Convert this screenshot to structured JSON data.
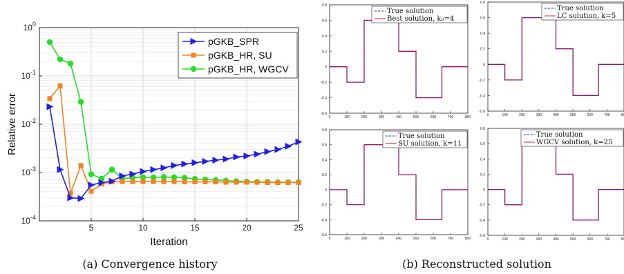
{
  "figure": {
    "caption_a": "(a)  Convergence history",
    "caption_b": "(b)  Reconstructed solution"
  },
  "chart_data": [
    {
      "type": "line",
      "title": "",
      "xlabel": "Iteration",
      "ylabel": "Relative error",
      "yscale": "log",
      "xlim": [
        0,
        25
      ],
      "ylim": [
        0.0001,
        1
      ],
      "xticks": [
        "5",
        "10",
        "15",
        "20",
        "25"
      ],
      "yticks": [
        "10^-4",
        "10^-3",
        "10^-2",
        "10^-1",
        "10^0"
      ],
      "grid": true,
      "legend_position": "top-right",
      "x": [
        1,
        2,
        3,
        4,
        5,
        6,
        7,
        8,
        9,
        10,
        11,
        12,
        13,
        14,
        15,
        16,
        17,
        18,
        19,
        20,
        21,
        22,
        23,
        24,
        25
      ],
      "series": [
        {
          "name": "pGKB_SPR",
          "color": "#1f1fe8",
          "marker": "triangle-right",
          "values": [
            0.023,
            0.00115,
            0.0003,
            0.00029,
            0.00055,
            0.00062,
            0.00066,
            0.00085,
            0.00093,
            0.00105,
            0.00115,
            0.00125,
            0.0014,
            0.0015,
            0.0016,
            0.0017,
            0.0018,
            0.0019,
            0.0021,
            0.0022,
            0.0024,
            0.0027,
            0.003,
            0.0035,
            0.0043
          ]
        },
        {
          "name": "pGKB_HR, SU",
          "color": "#f5821f",
          "marker": "square",
          "values": [
            0.034,
            0.062,
            0.00037,
            0.0014,
            0.00041,
            0.00058,
            0.00064,
            0.00065,
            0.00065,
            0.00065,
            0.00065,
            0.00065,
            0.00065,
            0.00064,
            0.00064,
            0.00064,
            0.00064,
            0.00063,
            0.00063,
            0.00063,
            0.00063,
            0.00062,
            0.00062,
            0.00062,
            0.00062
          ]
        },
        {
          "name": "pGKB_HR, WGCV",
          "color": "#22e022",
          "marker": "circle",
          "values": [
            0.5,
            0.22,
            0.18,
            0.029,
            0.00092,
            0.00075,
            0.00115,
            0.00075,
            0.00078,
            0.0008,
            0.0008,
            0.00081,
            0.0008,
            0.00078,
            0.00074,
            0.00072,
            0.0007,
            0.00068,
            0.00066,
            0.00065,
            0.00064,
            0.00064,
            0.00063,
            0.00063,
            0.00063
          ]
        }
      ]
    },
    {
      "type": "line",
      "panel": "top-left",
      "xlim": [
        0,
        800
      ],
      "ylim": [
        -0.6,
        0.8
      ],
      "xticks": [
        "0",
        "100",
        "200",
        "300",
        "400",
        "500",
        "600",
        "700",
        "800"
      ],
      "yticks": [
        "-0.6",
        "-0.4",
        "-0.2",
        "0",
        "0.2",
        "0.4",
        "0.6",
        "0.8"
      ],
      "legend_position": "top-right",
      "series": [
        {
          "name": "True solution",
          "color": "#1f1fe8",
          "style": "dashed",
          "x": [
            0,
            100,
            100,
            200,
            200,
            400,
            400,
            500,
            500,
            650,
            650,
            800
          ],
          "values": [
            0,
            0,
            -0.2,
            -0.2,
            0.6,
            0.6,
            0.2,
            0.2,
            -0.4,
            -0.4,
            0,
            0
          ]
        },
        {
          "name": "Best solution, k₀=4",
          "color": "#e8141e",
          "style": "solid",
          "x": [
            0,
            100,
            100,
            200,
            200,
            400,
            400,
            500,
            500,
            650,
            650,
            800
          ],
          "values": [
            0,
            0,
            -0.2,
            -0.2,
            0.6,
            0.6,
            0.2,
            0.2,
            -0.4,
            -0.4,
            0,
            0
          ]
        }
      ]
    },
    {
      "type": "line",
      "panel": "top-right",
      "xlim": [
        0,
        800
      ],
      "ylim": [
        -0.6,
        0.8
      ],
      "xticks": [
        "0",
        "100",
        "200",
        "300",
        "400",
        "500",
        "600",
        "700",
        "800"
      ],
      "yticks": [
        "-0.6",
        "-0.4",
        "-0.2",
        "0",
        "0.2",
        "0.4",
        "0.6",
        "0.8"
      ],
      "legend_position": "top-right",
      "series": [
        {
          "name": "True solution",
          "color": "#1f1fe8",
          "style": "dashed",
          "x": [
            0,
            100,
            100,
            200,
            200,
            400,
            400,
            500,
            500,
            650,
            650,
            800
          ],
          "values": [
            0,
            0,
            -0.2,
            -0.2,
            0.6,
            0.6,
            0.2,
            0.2,
            -0.4,
            -0.4,
            0,
            0
          ]
        },
        {
          "name": "LC solution, k=5",
          "color": "#e8141e",
          "style": "solid",
          "x": [
            0,
            100,
            100,
            200,
            200,
            400,
            400,
            500,
            500,
            650,
            650,
            800
          ],
          "values": [
            0,
            0,
            -0.2,
            -0.2,
            0.6,
            0.6,
            0.2,
            0.2,
            -0.4,
            -0.4,
            0,
            0
          ]
        }
      ]
    },
    {
      "type": "line",
      "panel": "bottom-left",
      "xlim": [
        0,
        800
      ],
      "ylim": [
        -0.6,
        0.8
      ],
      "xticks": [
        "0",
        "100",
        "200",
        "300",
        "400",
        "500",
        "600",
        "700",
        "800"
      ],
      "yticks": [
        "-0.6",
        "-0.4",
        "-0.2",
        "0",
        "0.2",
        "0.4",
        "0.6",
        "0.8"
      ],
      "legend_position": "top-right",
      "series": [
        {
          "name": "True solution",
          "color": "#1f1fe8",
          "style": "dashed",
          "x": [
            0,
            100,
            100,
            200,
            200,
            400,
            400,
            500,
            500,
            650,
            650,
            800
          ],
          "values": [
            0,
            0,
            -0.2,
            -0.2,
            0.6,
            0.6,
            0.2,
            0.2,
            -0.4,
            -0.4,
            0,
            0
          ]
        },
        {
          "name": "SU solution, k=11",
          "color": "#e8141e",
          "style": "solid",
          "x": [
            0,
            100,
            100,
            200,
            200,
            400,
            400,
            500,
            500,
            650,
            650,
            800
          ],
          "values": [
            0,
            0,
            -0.2,
            -0.2,
            0.6,
            0.6,
            0.2,
            0.2,
            -0.4,
            -0.4,
            0,
            0
          ]
        }
      ]
    },
    {
      "type": "line",
      "panel": "bottom-right",
      "xlim": [
        0,
        800
      ],
      "ylim": [
        -0.6,
        0.8
      ],
      "xticks": [
        "0",
        "100",
        "200",
        "300",
        "400",
        "500",
        "600",
        "700",
        "800"
      ],
      "yticks": [
        "-0.6",
        "-0.4",
        "-0.2",
        "0",
        "0.2",
        "0.4",
        "0.6",
        "0.8"
      ],
      "legend_position": "top-right",
      "series": [
        {
          "name": "True solution",
          "color": "#1f1fe8",
          "style": "dashed",
          "x": [
            0,
            100,
            100,
            200,
            200,
            400,
            400,
            500,
            500,
            650,
            650,
            800
          ],
          "values": [
            0,
            0,
            -0.2,
            -0.2,
            0.6,
            0.6,
            0.2,
            0.2,
            -0.4,
            -0.4,
            0,
            0
          ]
        },
        {
          "name": "WGCV solution, k=25",
          "color": "#e8141e",
          "style": "solid",
          "x": [
            0,
            100,
            100,
            200,
            200,
            400,
            400,
            500,
            500,
            650,
            650,
            800
          ],
          "values": [
            0,
            0,
            -0.2,
            -0.2,
            0.6,
            0.6,
            0.2,
            0.2,
            -0.4,
            -0.4,
            0,
            0
          ]
        }
      ]
    }
  ]
}
